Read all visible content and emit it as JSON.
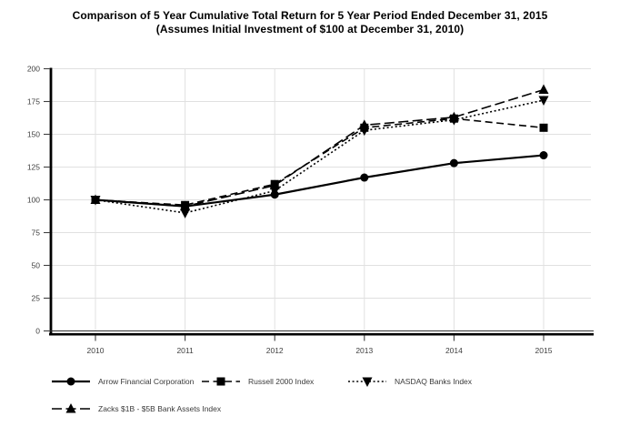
{
  "title": {
    "line1": "Comparison of 5 Year Cumulative Total Return for 5 Year Period Ended December 31, 2015",
    "line2": "(Assumes Initial Investment of $100 at December 31, 2010)"
  },
  "chart_data": {
    "type": "line",
    "x": [
      "2010",
      "2011",
      "2012",
      "2013",
      "2014",
      "2015"
    ],
    "series": [
      {
        "name": "Arrow Financial Corporation",
        "values": [
          100,
          95,
          104,
          117,
          128,
          134
        ],
        "line": "solid",
        "marker": "circle",
        "color": "#000000"
      },
      {
        "name": "Russell 2000 Index",
        "values": [
          100,
          96,
          112,
          155,
          162,
          155
        ],
        "line": "dashed",
        "marker": "square",
        "color": "#000000"
      },
      {
        "name": "NASDAQ Banks Index",
        "values": [
          100,
          90,
          107,
          153,
          161,
          176
        ],
        "line": "dotted",
        "marker": "triangle-down",
        "color": "#000000"
      },
      {
        "name": "Zacks $1B - $5B Bank Assets Index",
        "values": [
          100,
          95,
          111,
          157,
          163,
          184
        ],
        "line": "long-dash",
        "marker": "triangle-up",
        "color": "#000000"
      }
    ],
    "ylim": [
      0,
      200
    ],
    "yticks": [
      0,
      25,
      50,
      75,
      100,
      125,
      150,
      175,
      200
    ],
    "xlabel": "",
    "ylabel": "",
    "grid": true,
    "legend_position": "bottom",
    "colors": {
      "grid": "#e0e0e0",
      "axis": "#000000",
      "tick_label": "#404040",
      "zero_line": "#333333"
    }
  }
}
